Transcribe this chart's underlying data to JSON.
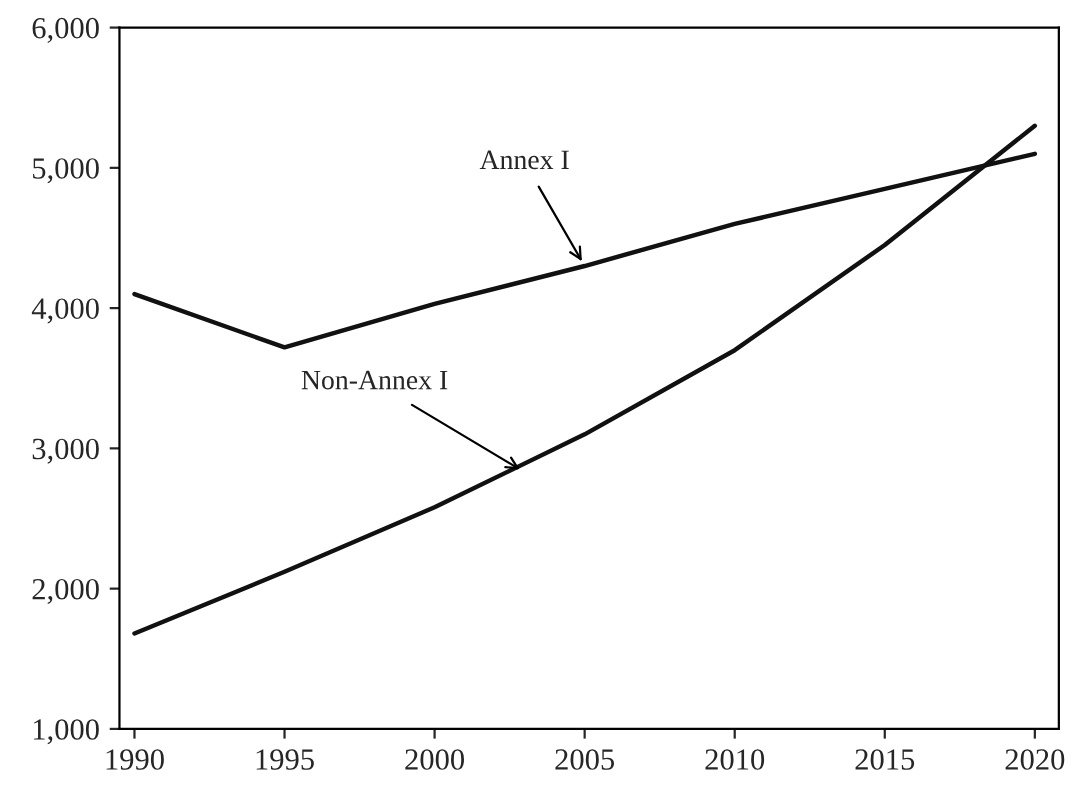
{
  "chart_data": {
    "type": "line",
    "x": [
      1990,
      1995,
      2000,
      2005,
      2010,
      2015,
      2020
    ],
    "series": [
      {
        "color": "#111111",
        "values": [
          4100,
          3720,
          4030,
          4300,
          4600,
          4850,
          5100
        ]
      },
      {
        "color": "#111111",
        "values": [
          1680,
          2120,
          2580,
          3100,
          3700,
          4450,
          5300
        ]
      }
    ],
    "annotations": [
      {
        "text": "Annex I",
        "x": 2005,
        "y": 4300
      },
      {
        "text": "Non-Annex I",
        "x": 2003,
        "y": 2830
      }
    ],
    "xlim": [
      1989.5,
      2020.8
    ],
    "xticks": [
      1990,
      1995,
      2000,
      2005,
      2010,
      2015,
      2020
    ],
    "ylim": [
      1000,
      6000
    ],
    "yticks": [
      {
        "value": 1000,
        "label": "1,000"
      },
      {
        "value": 2000,
        "label": "2,000"
      },
      {
        "value": 3000,
        "label": "3,000"
      },
      {
        "value": 4000,
        "label": "4,000"
      },
      {
        "value": 5000,
        "label": "5,000"
      },
      {
        "value": 6000,
        "label": "6,000"
      }
    ],
    "grid": false,
    "legend": false,
    "marker": "none",
    "line_style": "solid"
  }
}
